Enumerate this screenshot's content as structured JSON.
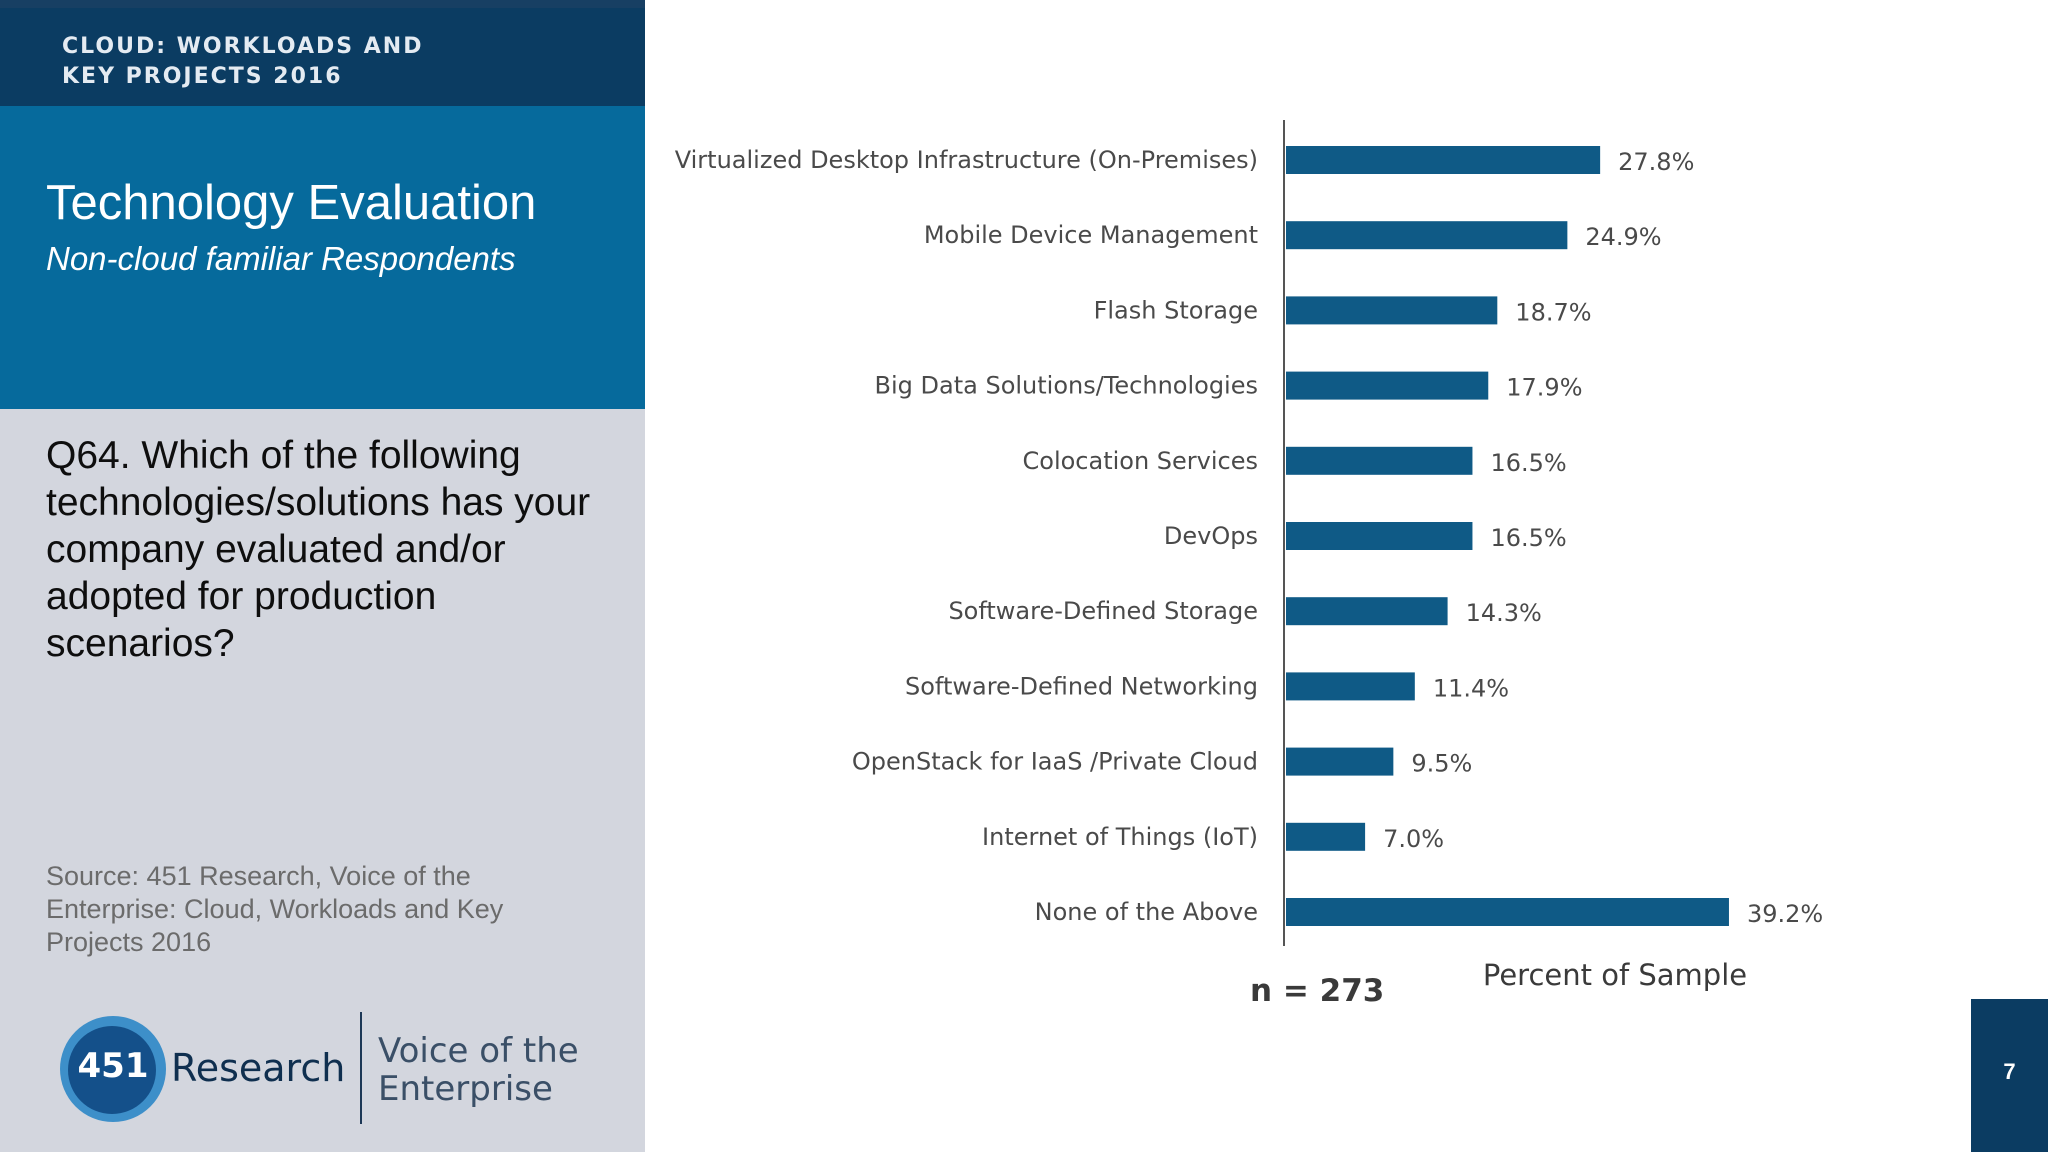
{
  "header": {
    "text": "CLOUD: WORKLOADS AND\nKEY PROJECTS 2016"
  },
  "title": "Technology Evaluation",
  "subtitle": "Non-cloud familiar Respondents",
  "question": "Q64. Which of the following technologies/solutions has your company evaluated and/or adopted for production scenarios?",
  "source": "Source: 451 Research, Voice of the Enterprise: Cloud, Workloads and Key Projects 2016",
  "logo": {
    "number": "451",
    "brand": "Research",
    "product": "Voice of the\nEnterprise"
  },
  "page_number": "7",
  "colors": {
    "bar": "#0f5a86",
    "header": "#0b3c62",
    "title_band": "#066a9c",
    "panel": "#d3d6de"
  },
  "chart_data": {
    "type": "bar",
    "orientation": "horizontal",
    "categories": [
      "Virtualized Desktop Infrastructure (On-Premises)",
      "Mobile Device Management",
      "Flash Storage",
      "Big Data Solutions/Technologies",
      "Colocation Services",
      "DevOps",
      "Software-Defined Storage",
      "Software-Defined Networking",
      "OpenStack for IaaS /Private Cloud",
      "Internet of Things (IoT)",
      "None of the Above"
    ],
    "values": [
      27.8,
      24.9,
      18.7,
      17.9,
      16.5,
      16.5,
      14.3,
      11.4,
      9.5,
      7.0,
      39.2
    ],
    "value_labels": [
      "27.8%",
      "24.9%",
      "18.7%",
      "17.9%",
      "16.5%",
      "16.5%",
      "14.3%",
      "11.4%",
      "9.5%",
      "7.0%",
      "39.2%"
    ],
    "xlabel": "Percent of Sample",
    "note": "n = 273",
    "xlim": [
      0,
      40
    ]
  }
}
